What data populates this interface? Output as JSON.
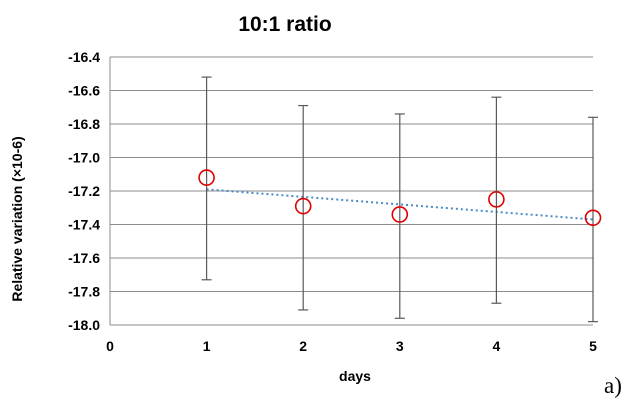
{
  "chart_data": {
    "type": "scatter",
    "title": "10:1 ratio",
    "xlabel": "days",
    "ylabel": "Relative variation (×10-6)",
    "xlim": [
      0,
      5
    ],
    "ylim": [
      -18.0,
      -16.4
    ],
    "x_ticks": [
      "0",
      "1",
      "2",
      "3",
      "4",
      "5"
    ],
    "y_ticks": [
      "-16.4",
      "-16.6",
      "-16.8",
      "-17.0",
      "-17.2",
      "-17.4",
      "-17.6",
      "-17.8",
      "-18.0"
    ],
    "grid": true,
    "series": [
      {
        "x": [
          1,
          2,
          3,
          4,
          5
        ],
        "y": [
          -17.12,
          -17.29,
          -17.34,
          -17.25,
          -17.36
        ],
        "error_low": [
          -17.73,
          -17.91,
          -17.96,
          -17.87,
          -17.98
        ],
        "error_high": [
          -16.52,
          -16.69,
          -16.74,
          -16.64,
          -16.76
        ],
        "marker": "open-circle",
        "color": "#e00000"
      }
    ],
    "trendline": {
      "style": "dotted",
      "color": "#4a8ac6",
      "x": [
        1,
        5
      ],
      "y": [
        -17.19,
        -17.37
      ]
    },
    "panel_label": "a)"
  }
}
